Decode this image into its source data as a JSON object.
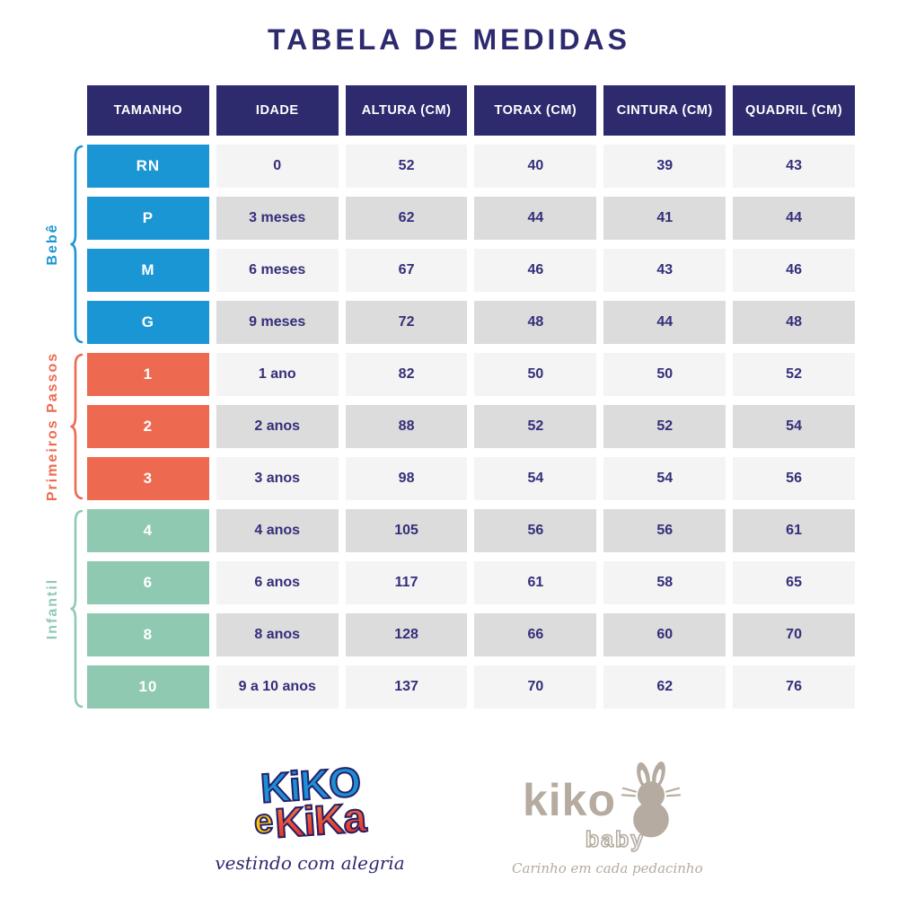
{
  "title": "TABELA DE MEDIDAS",
  "colors": {
    "navy": "#2d2a6e",
    "blue": "#1b96d5",
    "coral": "#ed6a50",
    "mint": "#90c9b2",
    "row_light": "#f4f4f4",
    "row_dark": "#dcdcdc",
    "taupe": "#b5aba0"
  },
  "table": {
    "headers": [
      "TAMANHO",
      "IDADE",
      "ALTURA (CM)",
      "TORAX (CM)",
      "CINTURA (CM)",
      "QUADRIL (CM)"
    ],
    "groups": [
      {
        "label": "Bebê",
        "color": "#1b96d5",
        "rows": [
          {
            "size": "RN",
            "idade": "0",
            "altura": "52",
            "torax": "40",
            "cintura": "39",
            "quadril": "43"
          },
          {
            "size": "P",
            "idade": "3 meses",
            "altura": "62",
            "torax": "44",
            "cintura": "41",
            "quadril": "44"
          },
          {
            "size": "M",
            "idade": "6 meses",
            "altura": "67",
            "torax": "46",
            "cintura": "43",
            "quadril": "46"
          },
          {
            "size": "G",
            "idade": "9 meses",
            "altura": "72",
            "torax": "48",
            "cintura": "44",
            "quadril": "48"
          }
        ]
      },
      {
        "label": "Primeiros Passos",
        "color": "#ed6a50",
        "rows": [
          {
            "size": "1",
            "idade": "1 ano",
            "altura": "82",
            "torax": "50",
            "cintura": "50",
            "quadril": "52"
          },
          {
            "size": "2",
            "idade": "2 anos",
            "altura": "88",
            "torax": "52",
            "cintura": "52",
            "quadril": "54"
          },
          {
            "size": "3",
            "idade": "3 anos",
            "altura": "98",
            "torax": "54",
            "cintura": "54",
            "quadril": "56"
          }
        ]
      },
      {
        "label": "Infantil",
        "color": "#90c9b2",
        "rows": [
          {
            "size": "4",
            "idade": "4 anos",
            "altura": "105",
            "torax": "56",
            "cintura": "56",
            "quadril": "61"
          },
          {
            "size": "6",
            "idade": "6 anos",
            "altura": "117",
            "torax": "61",
            "cintura": "58",
            "quadril": "65"
          },
          {
            "size": "8",
            "idade": "8 anos",
            "altura": "128",
            "torax": "66",
            "cintura": "60",
            "quadril": "70"
          },
          {
            "size": "10",
            "idade": "9 a 10 anos",
            "altura": "137",
            "torax": "70",
            "cintura": "62",
            "quadril": "76"
          }
        ]
      }
    ]
  },
  "chart_data": {
    "type": "table",
    "title": "TABELA DE MEDIDAS",
    "columns": [
      "TAMANHO",
      "IDADE",
      "ALTURA (CM)",
      "TORAX (CM)",
      "CINTURA (CM)",
      "QUADRIL (CM)"
    ],
    "row_groups": [
      {
        "group": "Bebê",
        "rows": [
          [
            "RN",
            "0",
            52,
            40,
            39,
            43
          ],
          [
            "P",
            "3 meses",
            62,
            44,
            41,
            44
          ],
          [
            "M",
            "6 meses",
            67,
            46,
            43,
            46
          ],
          [
            "G",
            "9 meses",
            72,
            48,
            44,
            48
          ]
        ]
      },
      {
        "group": "Primeiros Passos",
        "rows": [
          [
            "1",
            "1 ano",
            82,
            50,
            50,
            52
          ],
          [
            "2",
            "2 anos",
            88,
            52,
            52,
            54
          ],
          [
            "3",
            "3 anos",
            98,
            54,
            54,
            56
          ]
        ]
      },
      {
        "group": "Infantil",
        "rows": [
          [
            "4",
            "4 anos",
            105,
            56,
            56,
            61
          ],
          [
            "6",
            "6 anos",
            117,
            61,
            58,
            65
          ],
          [
            "8",
            "8 anos",
            128,
            66,
            60,
            70
          ],
          [
            "10",
            "9 a 10 anos",
            137,
            70,
            62,
            76
          ]
        ]
      }
    ]
  },
  "footer": {
    "kiko_e_kika": {
      "line1": "KiKO",
      "e": "e",
      "line2": "KiKa",
      "tagline": "vestindo com alegria"
    },
    "kiko_baby": {
      "name": "kiko",
      "sub": "baby",
      "icon": "bunny-icon",
      "tagline": "Carinho em cada pedacinho"
    }
  }
}
